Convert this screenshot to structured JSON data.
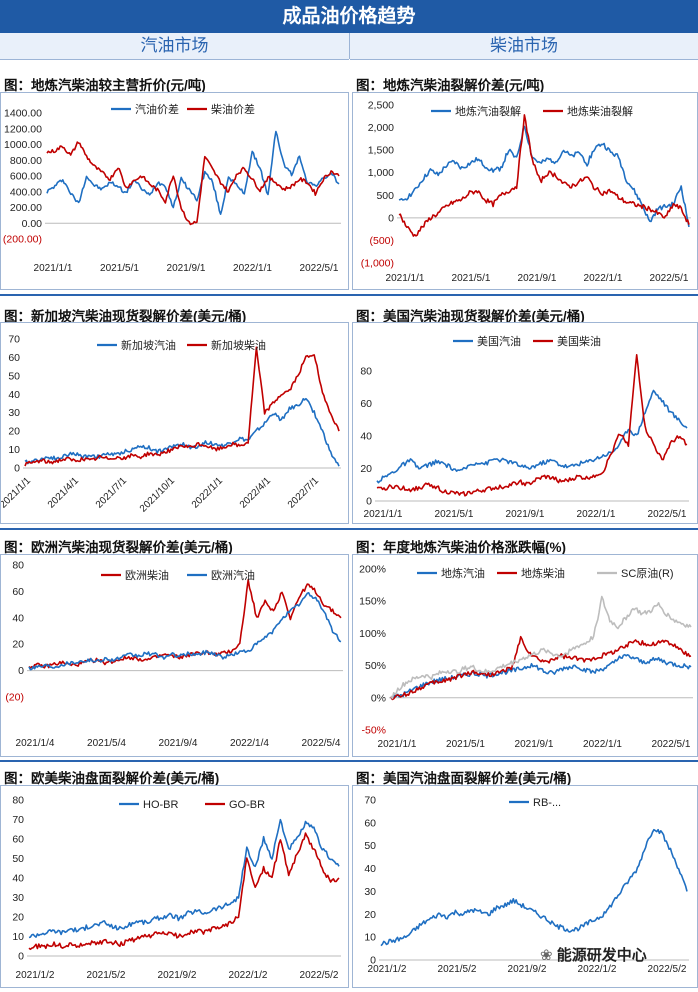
{
  "header": {
    "title": "成品油价格趋势",
    "col_left": "汽油市场",
    "col_right": "柴油市场"
  },
  "watermark": "能源研发中心",
  "colors": {
    "blue": "#1f6fc2",
    "red": "#c00000",
    "gray": "#bdbdbd"
  },
  "chart_data": [
    {
      "id": "c1",
      "type": "line",
      "title": "图：地炼汽柴油较主营折价(元/吨)",
      "x_ticks": [
        "2021/1/1",
        "2021/5/1",
        "2021/9/1",
        "2022/1/1",
        "2022/5/1"
      ],
      "y_ticks": [
        "1400.00",
        "1200.00",
        "1000.00",
        "800.00",
        "600.00",
        "400.00",
        "200.00",
        "0.00",
        "(200.00)"
      ],
      "ylim": [
        -200,
        1400
      ],
      "series": [
        {
          "name": "汽油价差",
          "color": "blue",
          "values": [
            400,
            470,
            560,
            380,
            250,
            600,
            480,
            430,
            520,
            470,
            380,
            550,
            440,
            350,
            520,
            480,
            200,
            560,
            430,
            300,
            650,
            520,
            100,
            600,
            480,
            380,
            900,
            700,
            350,
            1180,
            750,
            620,
            850,
            520,
            480,
            560,
            640,
            500
          ]
        },
        {
          "name": "柴油价差",
          "color": "red",
          "values": [
            900,
            920,
            980,
            860,
            1040,
            850,
            720,
            640,
            560,
            720,
            450,
            540,
            600,
            500,
            420,
            280,
            620,
            200,
            0,
            10,
            850,
            680,
            520,
            400,
            620,
            700,
            560,
            420,
            580,
            520,
            430,
            470,
            560,
            520,
            380,
            560,
            660,
            600
          ]
        }
      ]
    },
    {
      "id": "c2",
      "type": "line",
      "title": "图：地炼汽柴油裂解价差(元/吨)",
      "x_ticks": [
        "2021/1/1",
        "2021/5/1",
        "2021/9/1",
        "2022/1/1",
        "2022/5/1"
      ],
      "y_ticks": [
        "2,500",
        "2,000",
        "1,500",
        "1,000",
        "500",
        "0",
        "(500)",
        "(1,000)"
      ],
      "ylim": [
        -1000,
        2500
      ],
      "series": [
        {
          "name": "地炼汽油裂解",
          "color": "blue",
          "values": [
            350,
            450,
            600,
            850,
            1050,
            950,
            1150,
            1250,
            1100,
            1200,
            1300,
            1150,
            1050,
            1100,
            1500,
            1300,
            2050,
            1350,
            1200,
            1300,
            1250,
            1500,
            1350,
            1450,
            1200,
            1550,
            1650,
            1450,
            1350,
            850,
            600,
            300,
            -100,
            200,
            250,
            300,
            700,
            -200
          ]
        },
        {
          "name": "地炼柴油裂解",
          "color": "red",
          "values": [
            100,
            -200,
            -400,
            -200,
            0,
            100,
            250,
            350,
            400,
            550,
            600,
            400,
            300,
            500,
            600,
            700,
            2250,
            1300,
            800,
            1000,
            950,
            750,
            700,
            800,
            900,
            650,
            550,
            600,
            450,
            350,
            300,
            250,
            200,
            100,
            0,
            300,
            200,
            -150
          ]
        }
      ]
    },
    {
      "id": "c3",
      "type": "line",
      "title": "图：新加坡汽柴油现货裂解价差(美元/桶)",
      "x_ticks": [
        "2021/1/1",
        "2021/4/1",
        "2021/7/1",
        "2021/10/1",
        "2022/1/1",
        "2022/4/1",
        "2022/7/1"
      ],
      "y_ticks": [
        "70",
        "60",
        "50",
        "40",
        "30",
        "20",
        "10",
        "0"
      ],
      "ylim": [
        0,
        70
      ],
      "series": [
        {
          "name": "新加坡汽油",
          "color": "blue",
          "values": [
            3,
            4,
            5,
            6,
            5,
            7,
            8,
            6,
            7,
            6,
            8,
            7,
            9,
            10,
            12,
            11,
            9,
            10,
            12,
            13,
            11,
            12,
            14,
            13,
            12,
            14,
            16,
            15,
            20,
            24,
            30,
            26,
            32,
            34,
            38,
            30,
            20,
            8,
            1
          ]
        },
        {
          "name": "新加坡柴油",
          "color": "red",
          "values": [
            2,
            3,
            4,
            3,
            4,
            5,
            4,
            5,
            4,
            6,
            5,
            6,
            5,
            7,
            6,
            8,
            7,
            9,
            10,
            12,
            11,
            13,
            12,
            10,
            11,
            13,
            12,
            14,
            65,
            30,
            35,
            40,
            42,
            50,
            60,
            62,
            40,
            30,
            20
          ]
        }
      ]
    },
    {
      "id": "c4",
      "type": "line",
      "title": "图：美国汽柴油现货裂解价差(美元/桶)",
      "x_ticks": [
        "2021/1/1",
        "2021/5/1",
        "2021/9/1",
        "2022/1/1",
        "2022/5/1"
      ],
      "y_ticks": [
        "80",
        "60",
        "40",
        "20",
        "0"
      ],
      "ylim": [
        0,
        90
      ],
      "series": [
        {
          "name": "美国汽油",
          "color": "blue",
          "values": [
            12,
            15,
            18,
            22,
            25,
            20,
            22,
            24,
            23,
            20,
            18,
            22,
            24,
            23,
            26,
            25,
            24,
            22,
            20,
            22,
            24,
            25,
            22,
            21,
            23,
            24,
            26,
            28,
            30,
            35,
            45,
            40,
            55,
            68,
            62,
            55,
            50,
            45
          ]
        },
        {
          "name": "美国柴油",
          "color": "red",
          "values": [
            7,
            8,
            9,
            8,
            7,
            8,
            10,
            9,
            6,
            5,
            4,
            5,
            6,
            7,
            8,
            9,
            10,
            12,
            10,
            13,
            15,
            14,
            12,
            13,
            15,
            14,
            16,
            18,
            30,
            42,
            35,
            90,
            45,
            35,
            25,
            35,
            40,
            35
          ]
        }
      ]
    },
    {
      "id": "c5",
      "type": "line",
      "title": "图：欧洲汽柴油现货裂解价差(美元/桶)",
      "x_ticks": [
        "2021/1/4",
        "2021/5/4",
        "2021/9/4",
        "2022/1/4",
        "2022/5/4"
      ],
      "y_ticks": [
        "80",
        "60",
        "40",
        "20",
        "0",
        "(20)"
      ],
      "ylim": [
        -20,
        80
      ],
      "series": [
        {
          "name": "欧洲柴油",
          "color": "red",
          "values": [
            3,
            4,
            3,
            5,
            6,
            4,
            5,
            7,
            8,
            6,
            7,
            9,
            10,
            9,
            8,
            10,
            12,
            11,
            10,
            12,
            13,
            14,
            12,
            13,
            15,
            20,
            68,
            40,
            52,
            45,
            60,
            40,
            55,
            65,
            60,
            50,
            45,
            40
          ]
        },
        {
          "name": "欧洲汽油",
          "color": "blue",
          "values": [
            2,
            3,
            4,
            3,
            5,
            6,
            7,
            8,
            7,
            9,
            8,
            10,
            12,
            11,
            13,
            12,
            10,
            12,
            11,
            13,
            12,
            14,
            13,
            10,
            12,
            14,
            15,
            20,
            25,
            30,
            40,
            45,
            50,
            58,
            55,
            45,
            30,
            22
          ]
        }
      ]
    },
    {
      "id": "c6",
      "type": "line",
      "title": "图：年度地炼汽柴油价格涨跌幅(%)",
      "x_ticks": [
        "2021/1/1",
        "2021/5/1",
        "2021/9/1",
        "2022/1/1",
        "2022/5/1"
      ],
      "y_ticks": [
        "200%",
        "150%",
        "100%",
        "50%",
        "0%",
        "-50%"
      ],
      "ylim": [
        -50,
        200
      ],
      "series": [
        {
          "name": "地炼汽油",
          "color": "blue",
          "values": [
            0,
            3,
            8,
            15,
            20,
            25,
            28,
            30,
            32,
            35,
            38,
            36,
            34,
            38,
            40,
            42,
            45,
            50,
            48,
            40,
            38,
            45,
            48,
            50,
            42,
            40,
            45,
            50,
            60,
            65,
            62,
            55,
            58,
            60,
            55,
            52,
            50,
            48
          ]
        },
        {
          "name": "地炼柴油",
          "color": "red",
          "values": [
            0,
            2,
            6,
            12,
            18,
            22,
            25,
            28,
            32,
            36,
            40,
            38,
            36,
            38,
            42,
            48,
            92,
            70,
            60,
            55,
            60,
            65,
            62,
            60,
            58,
            62,
            65,
            70,
            75,
            80,
            90,
            85,
            82,
            86,
            88,
            80,
            72,
            65
          ]
        },
        {
          "name": "SC原油(R)",
          "color": "gray",
          "values": [
            0,
            15,
            25,
            30,
            35,
            32,
            38,
            42,
            40,
            45,
            48,
            42,
            40,
            45,
            50,
            55,
            60,
            65,
            70,
            75,
            68,
            65,
            72,
            80,
            85,
            95,
            155,
            120,
            110,
            125,
            140,
            130,
            135,
            145,
            130,
            120,
            115,
            110
          ]
        }
      ]
    },
    {
      "id": "c7",
      "type": "line",
      "title": "图：欧美柴油盘面裂解价差(美元/桶)",
      "x_ticks": [
        "2021/1/2",
        "2021/5/2",
        "2021/9/2",
        "2022/1/2",
        "2022/5/2"
      ],
      "y_ticks": [
        "80",
        "70",
        "60",
        "50",
        "40",
        "30",
        "20",
        "10",
        "0"
      ],
      "ylim": [
        0,
        80
      ],
      "series": [
        {
          "name": "HO-BR",
          "color": "blue",
          "values": [
            10,
            11,
            12,
            13,
            12,
            14,
            13,
            15,
            16,
            17,
            15,
            14,
            16,
            18,
            17,
            19,
            20,
            21,
            19,
            22,
            23,
            22,
            24,
            25,
            27,
            30,
            55,
            45,
            60,
            50,
            70,
            55,
            60,
            68,
            65,
            55,
            50,
            46
          ]
        },
        {
          "name": "GO-BR",
          "color": "red",
          "values": [
            4,
            5,
            5,
            6,
            5,
            6,
            5,
            7,
            6,
            8,
            7,
            6,
            8,
            9,
            10,
            11,
            12,
            11,
            10,
            12,
            13,
            12,
            14,
            15,
            17,
            20,
            50,
            35,
            45,
            40,
            60,
            42,
            52,
            62,
            55,
            45,
            38,
            40
          ]
        }
      ]
    },
    {
      "id": "c8",
      "type": "line",
      "title": "图：美国汽油盘面裂解价差(美元/桶)",
      "x_ticks": [
        "2021/1/2",
        "2021/5/2",
        "2021/9/2",
        "2022/1/2",
        "2022/5/2"
      ],
      "y_ticks": [
        "70",
        "60",
        "50",
        "40",
        "30",
        "20",
        "10",
        "0"
      ],
      "ylim": [
        0,
        70
      ],
      "series": [
        {
          "name": "RB-...",
          "color": "blue",
          "values": [
            7,
            8,
            9,
            10,
            13,
            16,
            18,
            20,
            19,
            21,
            20,
            22,
            21,
            20,
            23,
            24,
            26,
            24,
            22,
            20,
            18,
            15,
            14,
            13,
            14,
            16,
            18,
            20,
            25,
            30,
            35,
            40,
            50,
            58,
            55,
            48,
            40,
            30
          ]
        }
      ]
    }
  ]
}
